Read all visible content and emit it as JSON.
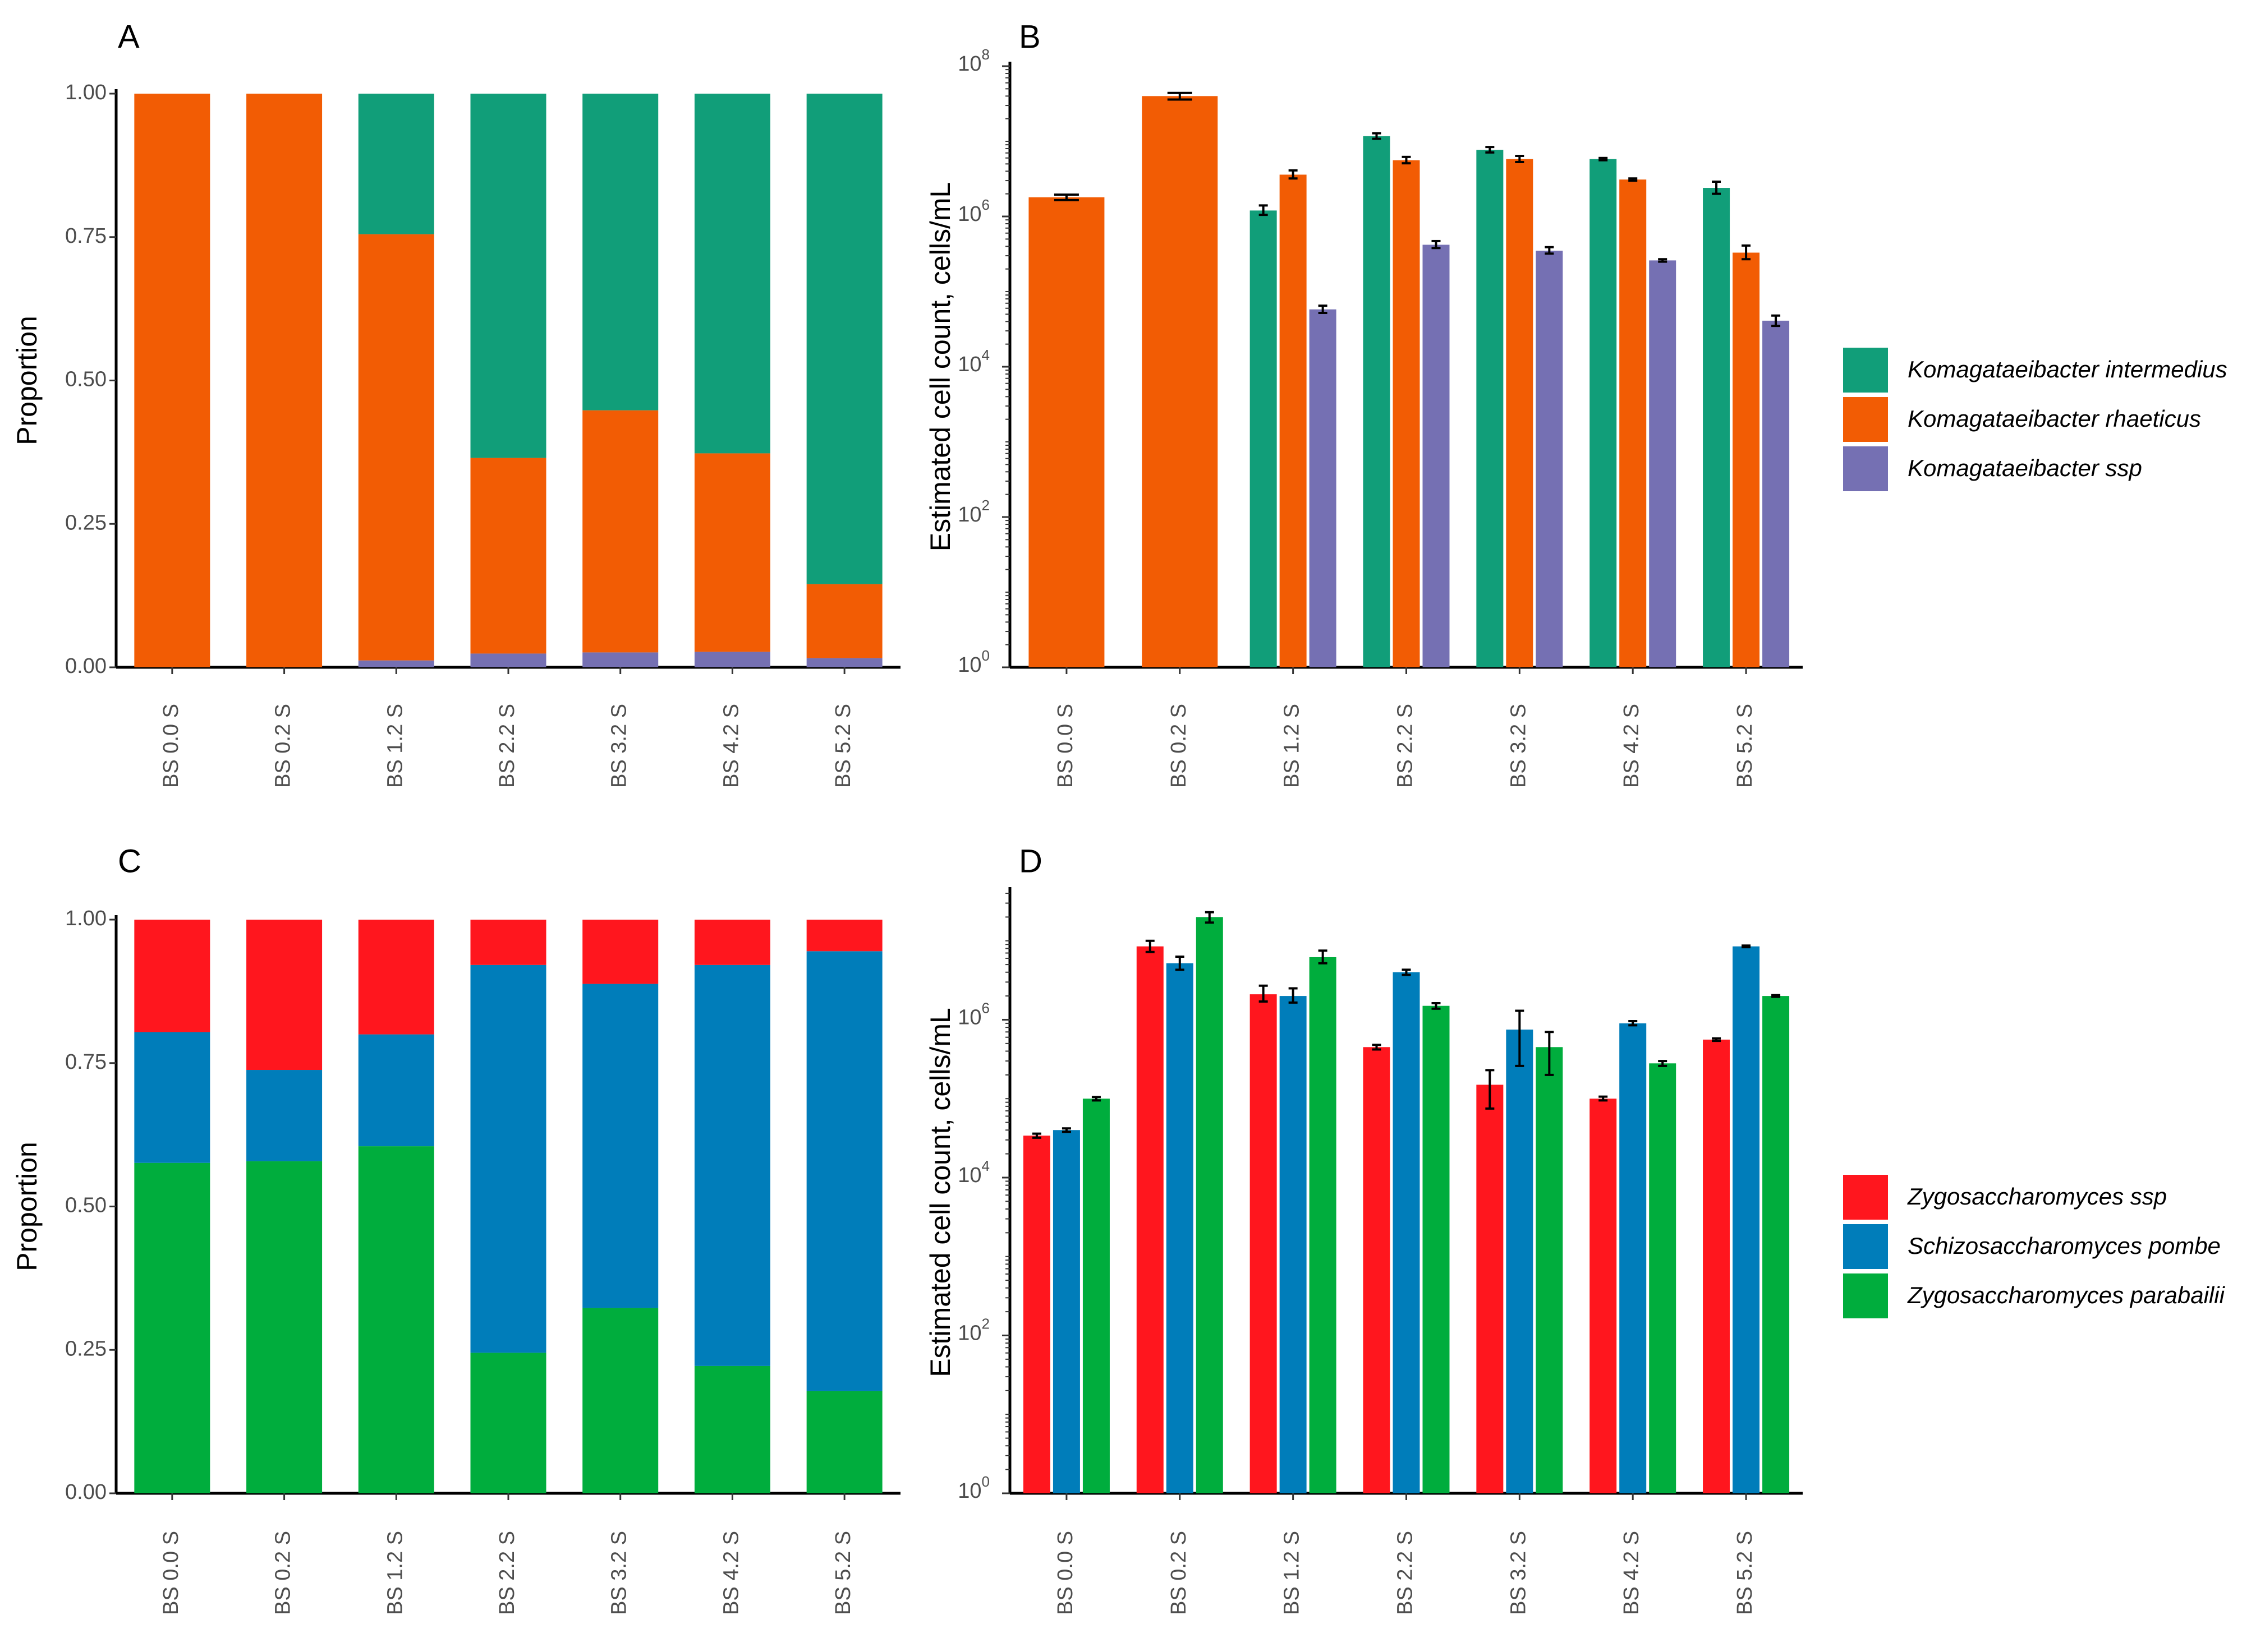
{
  "chart_data": [
    {
      "panel": "A",
      "type": "bar",
      "stacked": true,
      "ylabel": "Proportion",
      "xlabel": "",
      "ylim": [
        0,
        1
      ],
      "yticks": [
        0,
        0.25,
        0.5,
        0.75,
        1
      ],
      "ytick_labels": [
        "0.00",
        "0.25",
        "0.50",
        "0.75",
        "1.00"
      ],
      "categories": [
        "BS 0.0 S",
        "BS 0.2 S",
        "BS 1.2 S",
        "BS 2.2 S",
        "BS 3.2 S",
        "BS 4.2 S",
        "BS 5.2 S"
      ],
      "series": [
        {
          "name": "Komagataeibacter ssp",
          "color": "#7570b3",
          "values": [
            0,
            0,
            0.012,
            0.024,
            0.026,
            0.027,
            0.016
          ]
        },
        {
          "name": "Komagataeibacter rhaeticus",
          "color": "#f25c04",
          "values": [
            1.0,
            1.0,
            0.743,
            0.341,
            0.422,
            0.346,
            0.129
          ]
        },
        {
          "name": "Komagataeibacter intermedius",
          "color": "#119e79",
          "values": [
            0,
            0,
            0.245,
            0.635,
            0.552,
            0.627,
            0.855
          ]
        }
      ]
    },
    {
      "panel": "B",
      "type": "bar",
      "log_scale": true,
      "ylabel": "Estimated cell count, cells/mL",
      "xlabel": "",
      "ylim": [
        1,
        100000000
      ],
      "yticks": [
        0,
        2,
        4,
        6,
        8
      ],
      "categories": [
        "BS 0.0 S",
        "BS 0.2 S",
        "BS 1.2 S",
        "BS 2.2 S",
        "BS 3.2 S",
        "BS 4.2 S",
        "BS 5.2 S"
      ],
      "series": [
        {
          "name": "Komagataeibacter intermedius",
          "color": "#119e79",
          "values": [
            null,
            null,
            1200000,
            11700000,
            7700000,
            5800000,
            2400000
          ],
          "errors": [
            null,
            null,
            [
              1050000,
              1400000
            ],
            [
              10800000,
              12800000
            ],
            [
              7100000,
              8400000
            ],
            [
              5600000,
              6000000
            ],
            [
              2000000,
              2900000
            ]
          ]
        },
        {
          "name": "Komagataeibacter rhaeticus",
          "color": "#f25c04",
          "values": [
            1800000,
            40000000,
            3600000,
            5600000,
            5800000,
            3100000,
            330000
          ],
          "errors": [
            [
              1650000,
              1950000
            ],
            [
              36000000,
              44000000
            ],
            [
              3200000,
              4100000
            ],
            [
              5100000,
              6200000
            ],
            [
              5300000,
              6400000
            ],
            [
              3000000,
              3200000
            ],
            [
              270000,
              410000
            ]
          ],
          "legend_order": 2
        },
        {
          "name": "Komagataeibacter ssp",
          "color": "#7570b3",
          "values": [
            null,
            null,
            58000,
            420000,
            350000,
            260000,
            41000
          ],
          "errors": [
            null,
            null,
            [
              52000,
              65000
            ],
            [
              380000,
              470000
            ],
            [
              320000,
              390000
            ],
            [
              250000,
              270000
            ],
            [
              35000,
              48000
            ]
          ]
        }
      ],
      "legend_position": "right"
    },
    {
      "panel": "C",
      "type": "bar",
      "stacked": true,
      "ylabel": "Proportion",
      "xlabel": "",
      "ylim": [
        0,
        1
      ],
      "yticks": [
        0,
        0.25,
        0.5,
        0.75,
        1
      ],
      "ytick_labels": [
        "0.00",
        "0.25",
        "0.50",
        "0.75",
        "1.00"
      ],
      "categories": [
        "BS 0.0 S",
        "BS 0.2 S",
        "BS 1.2 S",
        "BS 2.2 S",
        "BS 3.2 S",
        "BS 4.2 S",
        "BS 5.2 S"
      ],
      "series": [
        {
          "name": "Zygosaccharomyces parabailii",
          "color": "#00ad3d",
          "values": [
            0.576,
            0.579,
            0.605,
            0.245,
            0.323,
            0.222,
            0.178
          ]
        },
        {
          "name": "Schizosaccharomyces pombe",
          "color": "#007dba",
          "values": [
            0.228,
            0.159,
            0.195,
            0.676,
            0.565,
            0.699,
            0.767
          ]
        },
        {
          "name": "Zygosaccharomyces ssp",
          "color": "#ff161e",
          "values": [
            0.196,
            0.262,
            0.2,
            0.079,
            0.112,
            0.079,
            0.055
          ]
        }
      ]
    },
    {
      "panel": "D",
      "type": "bar",
      "log_scale": true,
      "ylabel": "Estimated cell count, cells/mL",
      "xlabel": "",
      "ylim": [
        1,
        42000000
      ],
      "yticks": [
        0,
        2,
        4,
        6
      ],
      "categories": [
        "BS 0.0 S",
        "BS 0.2 S",
        "BS 1.2 S",
        "BS 2.2 S",
        "BS 3.2 S",
        "BS 4.2 S",
        "BS 5.2 S"
      ],
      "series": [
        {
          "name": "Zygosaccharomyces ssp",
          "color": "#ff161e",
          "values": [
            34000,
            8500000,
            2100000,
            450000,
            150000,
            100000,
            560000
          ],
          "errors": [
            [
              32000,
              36000
            ],
            [
              7200000,
              10000000
            ],
            [
              1700000,
              2700000
            ],
            [
              420000,
              480000
            ],
            [
              75000,
              230000
            ],
            [
              95000,
              106000
            ],
            [
              540000,
              580000
            ]
          ]
        },
        {
          "name": "Schizosaccharomyces pombe",
          "color": "#007dba",
          "values": [
            40000,
            5200000,
            2000000,
            4000000,
            750000,
            900000,
            8500000
          ],
          "errors": [
            [
              38000,
              42000
            ],
            [
              4300000,
              6300000
            ],
            [
              1650000,
              2500000
            ],
            [
              3700000,
              4300000
            ],
            [
              260000,
              1300000
            ],
            [
              850000,
              960000
            ],
            [
              8300000,
              8700000
            ]
          ]
        },
        {
          "name": "Zygosaccharomyces parabailii",
          "color": "#00ad3d",
          "values": [
            100000,
            20000000,
            6200000,
            1500000,
            450000,
            280000,
            2000000
          ],
          "errors": [
            [
              95000,
              105000
            ],
            [
              17000000,
              23000000
            ],
            [
              5200000,
              7500000
            ],
            [
              1380000,
              1620000
            ],
            [
              200000,
              700000
            ],
            [
              260000,
              300000
            ],
            [
              1950000,
              2050000
            ]
          ]
        }
      ],
      "legend_position": "right"
    }
  ],
  "legend_B": [
    "Komagataeibacter intermedius",
    "Komagataeibacter rhaeticus",
    "Komagataeibacter ssp"
  ],
  "legend_D": [
    "Zygosaccharomyces ssp",
    "Schizosaccharomyces pombe",
    "Zygosaccharomyces parabailii"
  ]
}
